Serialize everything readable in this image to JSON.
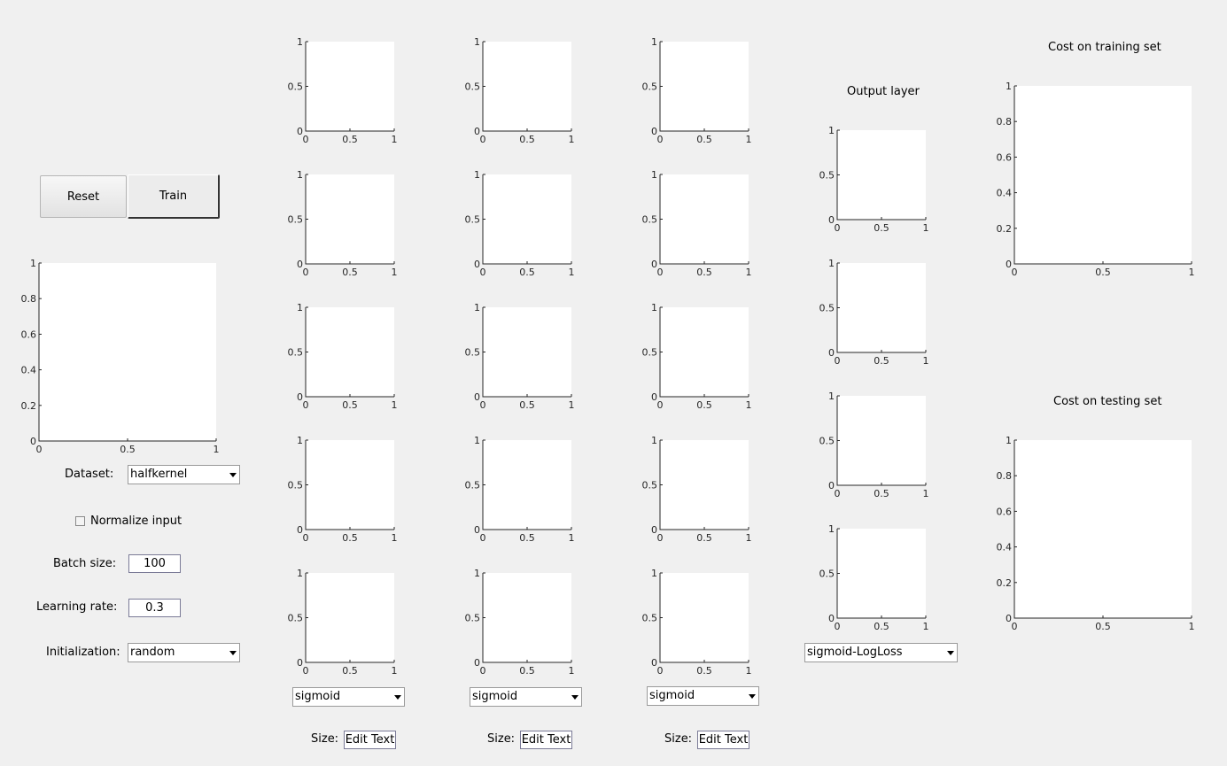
{
  "controls": {
    "reset_label": "Reset",
    "train_label": "Train",
    "dataset_label": "Dataset:",
    "dataset_value": "halfkernel",
    "normalize_label": "Normalize input",
    "normalize_checked": false,
    "batch_label": "Batch size:",
    "batch_value": "100",
    "lr_label": "Learning rate:",
    "lr_value": "0.3",
    "init_label": "Initialization:",
    "init_value": "random"
  },
  "hidden_layers": [
    {
      "activation": "sigmoid",
      "size_label": "Size:",
      "size_value": "Edit Text"
    },
    {
      "activation": "sigmoid",
      "size_label": "Size:",
      "size_value": "Edit Text"
    },
    {
      "activation": "sigmoid",
      "size_label": "Size:",
      "size_value": "Edit Text"
    }
  ],
  "output_layer": {
    "title": "Output layer",
    "activation": "sigmoid-LogLoss"
  },
  "cost_training": {
    "title": "Cost on training set"
  },
  "cost_testing": {
    "title": "Cost on testing set"
  },
  "chart_data": [
    {
      "type": "scatter",
      "name_hint": "dataset",
      "x_ticks": [
        "0",
        "0.5",
        "1"
      ],
      "y_ticks": [
        "0",
        "0.2",
        "0.4",
        "0.6",
        "0.8",
        "1"
      ],
      "xlim": [
        0,
        1
      ],
      "ylim": [
        0,
        1
      ],
      "series": []
    },
    {
      "type": "line",
      "x_ticks": [
        "0",
        "0.5",
        "1"
      ],
      "y_ticks": [
        "0",
        "0.5",
        "1"
      ],
      "xlim": [
        0,
        1
      ],
      "ylim": [
        0,
        1
      ],
      "series": [],
      "count": 15,
      "context": "hidden layer neuron plots (3 columns x 5 rows)"
    },
    {
      "type": "line",
      "x_ticks": [
        "0",
        "0.5",
        "1"
      ],
      "y_ticks": [
        "0",
        "0.5",
        "1"
      ],
      "xlim": [
        0,
        1
      ],
      "ylim": [
        0,
        1
      ],
      "series": [],
      "count": 4,
      "context": "output layer plots"
    },
    {
      "type": "line",
      "title": "Cost on training set",
      "x_ticks": [
        "0",
        "0.5",
        "1"
      ],
      "y_ticks": [
        "0",
        "0.2",
        "0.4",
        "0.6",
        "0.8",
        "1"
      ],
      "xlim": [
        0,
        1
      ],
      "ylim": [
        0,
        1
      ],
      "series": []
    },
    {
      "type": "line",
      "title": "Cost on testing set",
      "x_ticks": [
        "0",
        "0.5",
        "1"
      ],
      "y_ticks": [
        "0",
        "0.2",
        "0.4",
        "0.6",
        "0.8",
        "1"
      ],
      "xlim": [
        0,
        1
      ],
      "ylim": [
        0,
        1
      ],
      "series": []
    }
  ],
  "ticks": {
    "small_x": [
      "0",
      "0.5",
      "1"
    ],
    "small_y": [
      "0",
      "0.5",
      "1"
    ],
    "big_x": [
      "0",
      "0.5",
      "1"
    ],
    "big_y": [
      "0",
      "0.2",
      "0.4",
      "0.6",
      "0.8",
      "1"
    ]
  }
}
